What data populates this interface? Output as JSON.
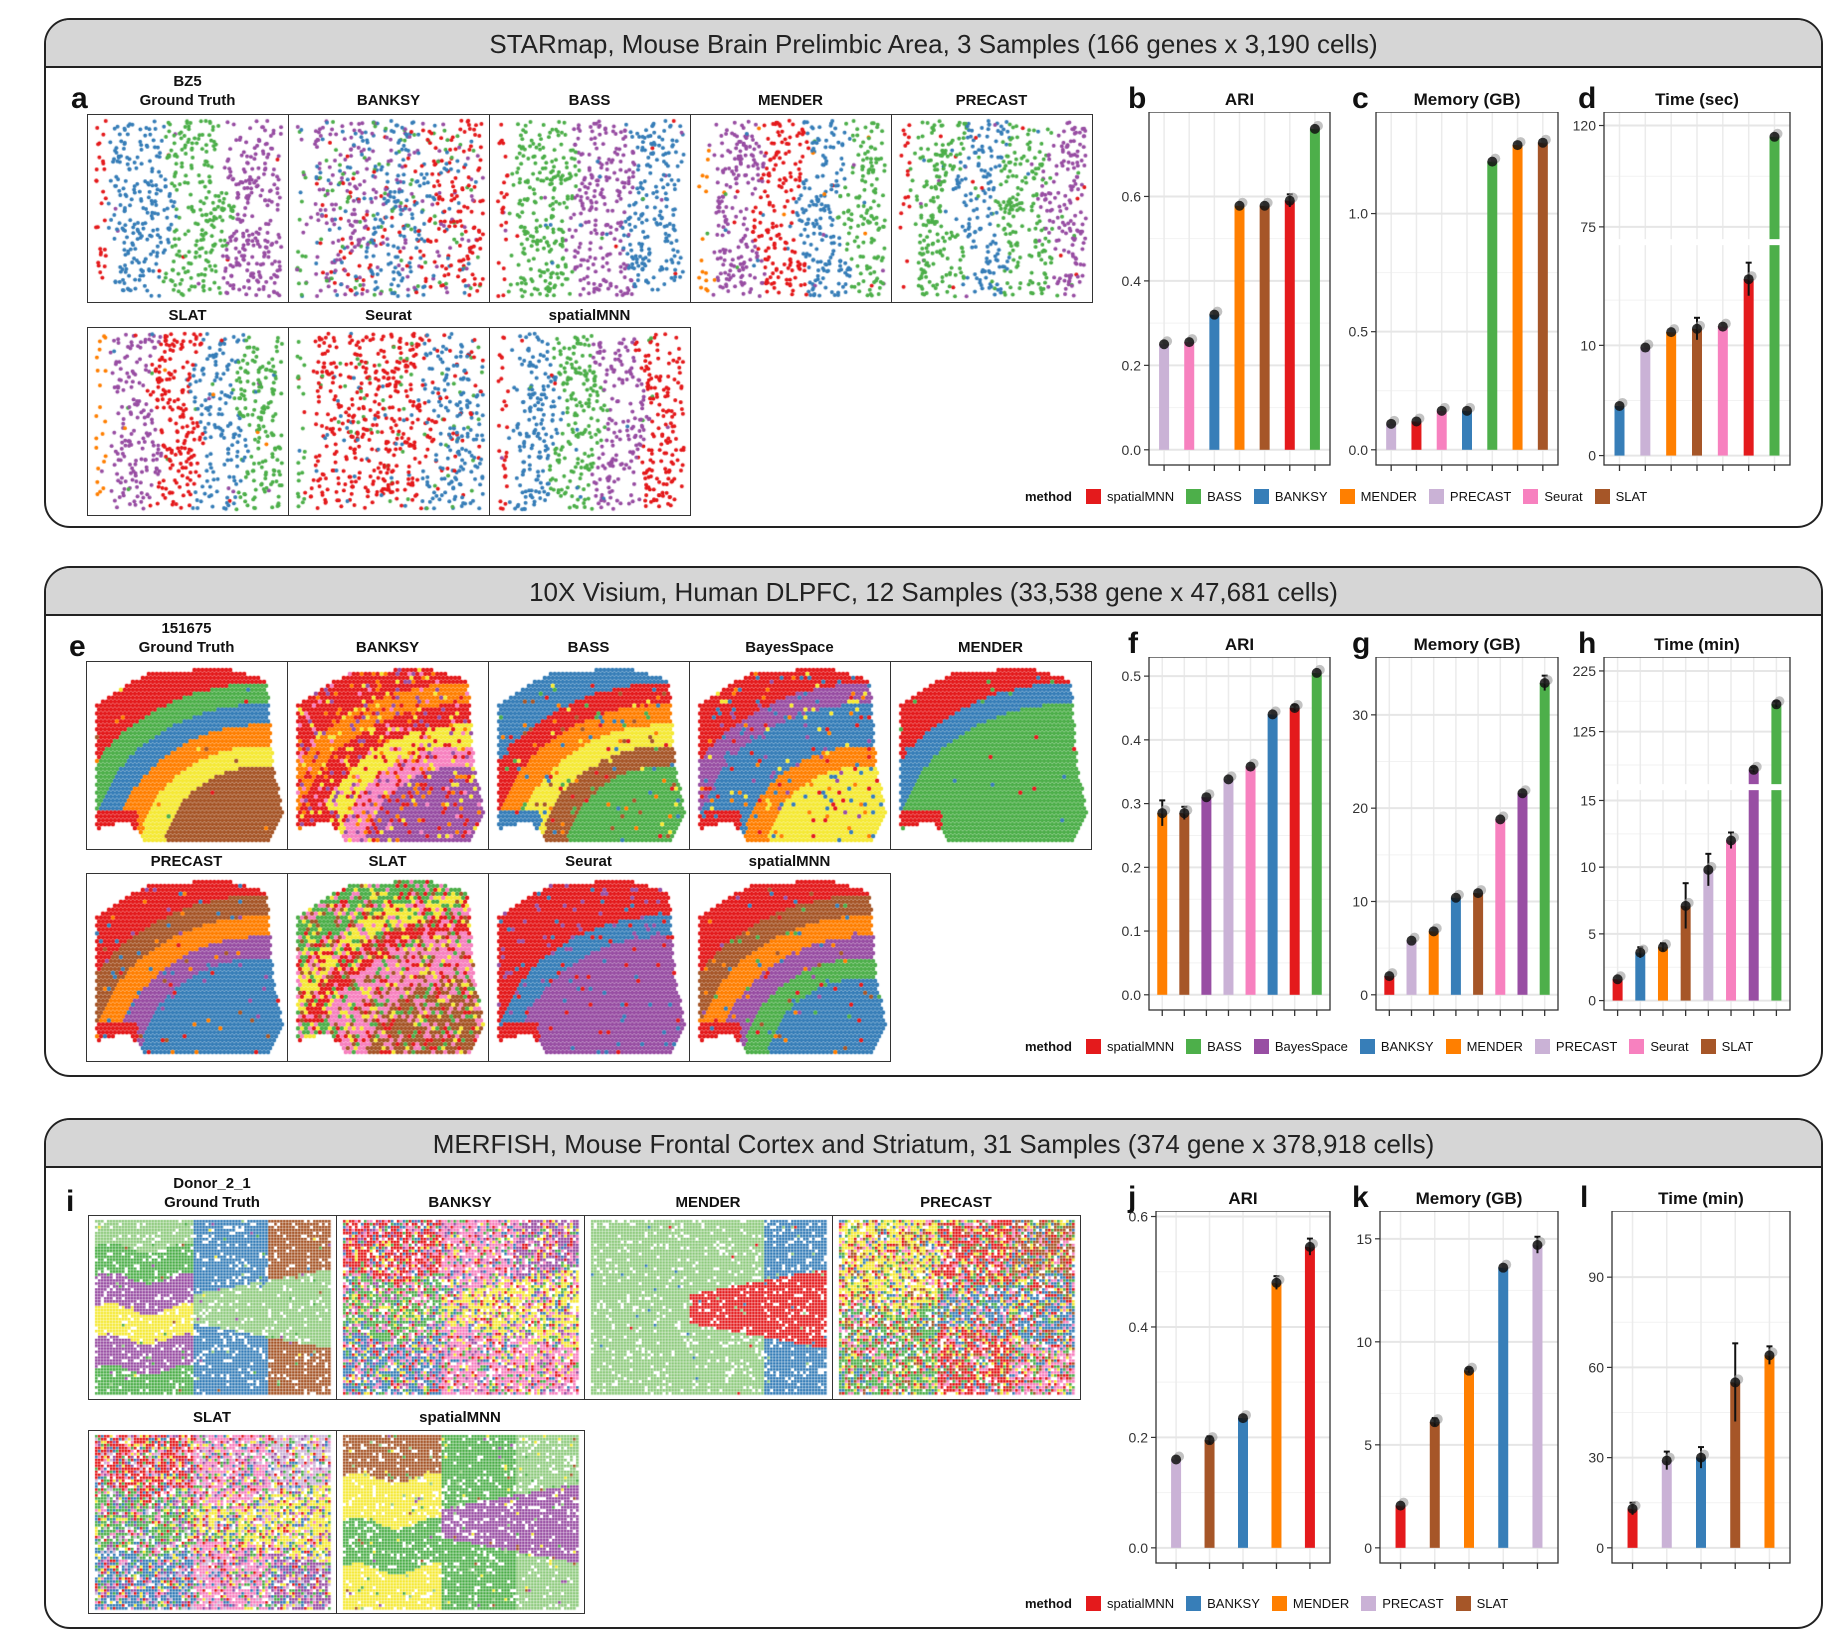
{
  "method_colors": {
    "spatialMNN": "#E41A1C",
    "BASS": "#4DAF4A",
    "BANKSY": "#377EB8",
    "MENDER": "#FF7F00",
    "PRECAST": "#CAB2D6",
    "Seurat": "#F781BF",
    "SLAT": "#A65628",
    "BayesSpace": "#984EA3"
  },
  "panels": [
    {
      "title": "STARmap, Mouse Brain Prelimbic Area, 3 Samples (166 genes x 3,190 cells)",
      "map_letter": "a",
      "sample": "BZ5",
      "maps": [
        "Ground Truth",
        "BANKSY",
        "BASS",
        "MENDER",
        "PRECAST",
        "SLAT",
        "Seurat",
        "spatialMNN"
      ],
      "legend_label": "method",
      "legend": [
        "spatialMNN",
        "BASS",
        "BANKSY",
        "MENDER",
        "PRECAST",
        "Seurat",
        "SLAT"
      ]
    },
    {
      "title": "10X Visium, Human DLPFC, 12 Samples (33,538 gene x 47,681 cells)",
      "map_letter": "e",
      "sample": "151675",
      "maps": [
        "Ground Truth",
        "BANKSY",
        "BASS",
        "BayesSpace",
        "MENDER",
        "PRECAST",
        "SLAT",
        "Seurat",
        "spatialMNN"
      ],
      "legend_label": "method",
      "legend": [
        "spatialMNN",
        "BASS",
        "BayesSpace",
        "BANKSY",
        "MENDER",
        "PRECAST",
        "Seurat",
        "SLAT"
      ]
    },
    {
      "title": "MERFISH, Mouse Frontal Cortex and Striatum, 31 Samples (374 gene x 378,918 cells)",
      "map_letter": "i",
      "sample": "Donor_2_1",
      "maps": [
        "Ground Truth",
        "BANKSY",
        "MENDER",
        "PRECAST",
        "SLAT",
        "spatialMNN"
      ],
      "legend_label": "method",
      "legend": [
        "spatialMNN",
        "BANKSY",
        "MENDER",
        "PRECAST",
        "SLAT"
      ]
    }
  ],
  "chart_data": [
    {
      "id": "b",
      "letter": "b",
      "type": "bar",
      "title": "ARI",
      "ylim": [
        0,
        0.8
      ],
      "ticks": [
        0,
        0.2,
        0.4,
        0.6
      ],
      "tick_labels": [
        "0.0",
        "0.2",
        "0.4",
        "0.6"
      ],
      "categories": [
        "PRECAST",
        "Seurat",
        "BANKSY",
        "MENDER",
        "SLAT",
        "spatialMNN",
        "BASS"
      ],
      "values": [
        0.25,
        0.255,
        0.32,
        0.578,
        0.578,
        0.59,
        0.76
      ],
      "errors": [
        0,
        0,
        0,
        0,
        0,
        0.015,
        0
      ]
    },
    {
      "id": "c",
      "letter": "c",
      "type": "bar",
      "title": "Memory (GB)",
      "ylim": [
        0,
        1.43
      ],
      "ticks": [
        0,
        0.5,
        1.0
      ],
      "tick_labels": [
        "0.0",
        "0.5",
        "1.0"
      ],
      "categories": [
        "PRECAST",
        "spatialMNN",
        "Seurat",
        "BANKSY",
        "BASS",
        "MENDER",
        "SLAT"
      ],
      "values": [
        0.11,
        0.12,
        0.165,
        0.165,
        1.22,
        1.29,
        1.3
      ],
      "errors": [
        0,
        0,
        0,
        0,
        0,
        0,
        0
      ]
    },
    {
      "id": "d",
      "letter": "d",
      "type": "bar",
      "title": "Time (sec)",
      "axis_break": {
        "lower": [
          0,
          19
        ],
        "upper": [
          70,
          126
        ]
      },
      "ticks": [
        0,
        10,
        75,
        120
      ],
      "tick_labels": [
        "0",
        "10",
        "75",
        "120"
      ],
      "categories": [
        "BANKSY",
        "PRECAST",
        "MENDER",
        "SLAT",
        "Seurat",
        "spatialMNN",
        "BASS"
      ],
      "values": [
        4.5,
        9.8,
        11.2,
        11.5,
        11.7,
        16,
        115
      ],
      "errors": [
        0,
        0,
        0,
        1,
        0,
        1.5,
        0
      ]
    },
    {
      "id": "f",
      "letter": "f",
      "type": "bar",
      "title": "ARI",
      "ylim": [
        0,
        0.53
      ],
      "ticks": [
        0,
        0.1,
        0.2,
        0.3,
        0.4,
        0.5
      ],
      "tick_labels": [
        "0.0",
        "0.1",
        "0.2",
        "0.3",
        "0.4",
        "0.5"
      ],
      "categories": [
        "MENDER",
        "SLAT",
        "BayesSpace",
        "PRECAST",
        "Seurat",
        "BANKSY",
        "spatialMNN",
        "BASS"
      ],
      "values": [
        0.285,
        0.285,
        0.31,
        0.338,
        0.358,
        0.44,
        0.45,
        0.505
      ],
      "errors": [
        0.02,
        0.01,
        0,
        0,
        0,
        0,
        0.005,
        0
      ]
    },
    {
      "id": "g",
      "letter": "g",
      "type": "bar",
      "title": "Memory (GB)",
      "ylim": [
        0,
        36.2
      ],
      "ticks": [
        0,
        10,
        20,
        30
      ],
      "tick_labels": [
        "0",
        "10",
        "20",
        "30"
      ],
      "categories": [
        "spatialMNN",
        "PRECAST",
        "MENDER",
        "BANKSY",
        "SLAT",
        "Seurat",
        "BayesSpace",
        "BASS"
      ],
      "values": [
        2,
        5.8,
        6.8,
        10.4,
        10.9,
        18.8,
        21.6,
        33.4
      ],
      "errors": [
        0,
        0,
        0,
        0,
        0,
        0,
        0,
        0.8
      ]
    },
    {
      "id": "h",
      "letter": "h",
      "type": "bar",
      "title": "Time (min)",
      "axis_break": {
        "lower": [
          0,
          15.7
        ],
        "upper": [
          40,
          248
        ]
      },
      "ticks": [
        0,
        5,
        10,
        15,
        125,
        225
      ],
      "tick_labels": [
        "0",
        "5",
        "10",
        "15",
        "125",
        "225"
      ],
      "categories": [
        "spatialMNN",
        "BANKSY",
        "MENDER",
        "SLAT",
        "PRECAST",
        "Seurat",
        "BayesSpace",
        "BASS"
      ],
      "values": [
        1.6,
        3.6,
        4,
        7.1,
        9.8,
        12,
        62,
        170
      ],
      "errors": [
        0,
        0.4,
        0.3,
        1.7,
        1.2,
        0.6,
        4,
        5
      ]
    },
    {
      "id": "j",
      "letter": "j",
      "type": "bar",
      "title": "ARI",
      "ylim": [
        0,
        0.61
      ],
      "ticks": [
        0,
        0.2,
        0.4,
        0.6
      ],
      "tick_labels": [
        "0.0",
        "0.2",
        "0.4",
        "0.6"
      ],
      "categories": [
        "PRECAST",
        "SLAT",
        "BANKSY",
        "MENDER",
        "spatialMNN"
      ],
      "values": [
        0.16,
        0.195,
        0.235,
        0.48,
        0.545
      ],
      "errors": [
        0,
        0.007,
        0,
        0.012,
        0.015
      ]
    },
    {
      "id": "k",
      "letter": "k",
      "type": "bar",
      "title": "Memory (GB)",
      "ylim": [
        0,
        16.35
      ],
      "ticks": [
        0,
        5,
        10,
        15
      ],
      "tick_labels": [
        "0",
        "5",
        "10",
        "15"
      ],
      "categories": [
        "spatialMNN",
        "SLAT",
        "MENDER",
        "BANKSY",
        "PRECAST"
      ],
      "values": [
        2.05,
        6.1,
        8.6,
        13.6,
        14.7
      ],
      "errors": [
        0,
        0.2,
        0.1,
        0,
        0.4
      ]
    },
    {
      "id": "l",
      "letter": "l",
      "type": "bar",
      "title": "Time (min)",
      "ylim": [
        0,
        112
      ],
      "ticks": [
        0,
        30,
        60,
        90
      ],
      "tick_labels": [
        "0",
        "30",
        "60",
        "90"
      ],
      "categories": [
        "spatialMNN",
        "PRECAST",
        "BANKSY",
        "SLAT",
        "MENDER"
      ],
      "values": [
        13,
        29,
        30,
        55,
        64
      ],
      "errors": [
        2,
        3,
        3.5,
        13,
        3
      ]
    }
  ]
}
